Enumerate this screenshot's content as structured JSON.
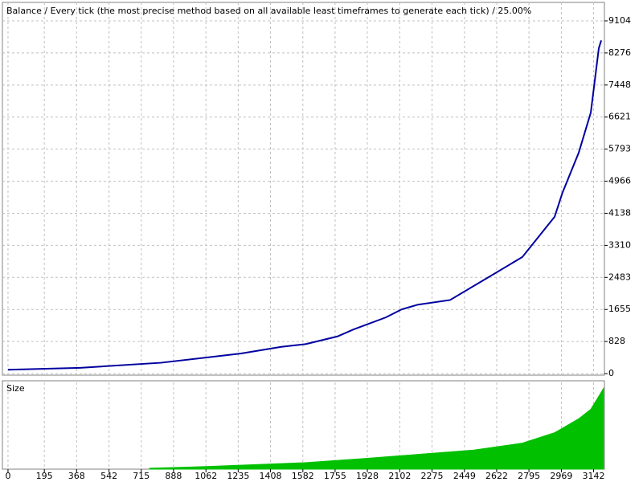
{
  "chart_data": [
    {
      "type": "line",
      "title": "Balance / Every tick (the most precise method based on all available least timeframes to generate each tick) / 25.00%",
      "x": [
        0,
        388,
        820,
        1251,
        1466,
        1596,
        1768,
        1854,
        2027,
        2113,
        2200,
        2372,
        2544,
        2760,
        2933,
        2975,
        3062,
        3127,
        3170,
        3183
      ],
      "values": [
        100,
        150,
        280,
        520,
        690,
        760,
        960,
        1140,
        1450,
        1660,
        1780,
        1900,
        2390,
        3010,
        4050,
        4670,
        5700,
        6740,
        8400,
        8600
      ],
      "color": "#0000a0",
      "xlim": [
        -30,
        3200
      ],
      "ylim": [
        -40,
        9580
      ],
      "yticks": [
        0,
        828,
        1655,
        2483,
        3310,
        4138,
        4966,
        5793,
        6621,
        7448,
        8276,
        9104
      ],
      "grid": true
    },
    {
      "type": "area",
      "title": "Size",
      "x": [
        760,
        1000,
        1300,
        1600,
        1900,
        2200,
        2500,
        2760,
        2933,
        3062,
        3127,
        3170,
        3195
      ],
      "values": [
        0.1,
        0.25,
        0.5,
        0.75,
        1.2,
        1.7,
        2.2,
        3.0,
        4.2,
        5.8,
        6.9,
        8.4,
        9.3
      ],
      "color": "#00c000",
      "xlim": [
        -30,
        3200
      ],
      "ylim": [
        0,
        10
      ],
      "xticks": [
        0,
        195,
        368,
        542,
        715,
        888,
        1062,
        1235,
        1408,
        1582,
        1755,
        1928,
        2102,
        2275,
        2449,
        2622,
        2795,
        2969,
        3142
      ],
      "grid": true
    }
  ]
}
